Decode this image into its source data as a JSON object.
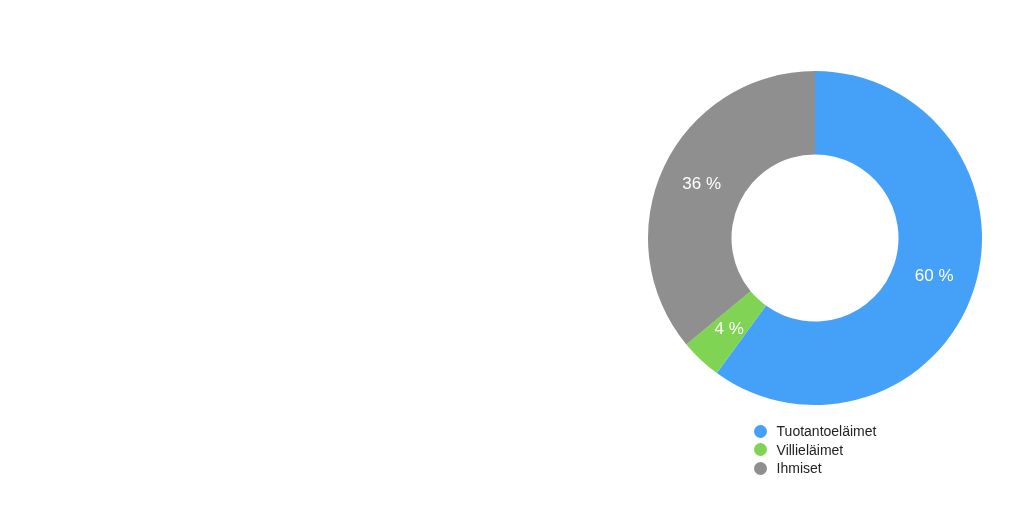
{
  "chart_data": {
    "type": "donut",
    "categories": [
      "Tuotantoeläimet",
      "Villieläimet",
      "Ihmiset"
    ],
    "values": [
      60,
      4,
      36
    ],
    "value_labels": [
      "60 %",
      "4 %",
      "36 %"
    ],
    "colors": [
      "#45a1f7",
      "#80d454",
      "#8f8f8f"
    ],
    "legend": "bottom"
  }
}
